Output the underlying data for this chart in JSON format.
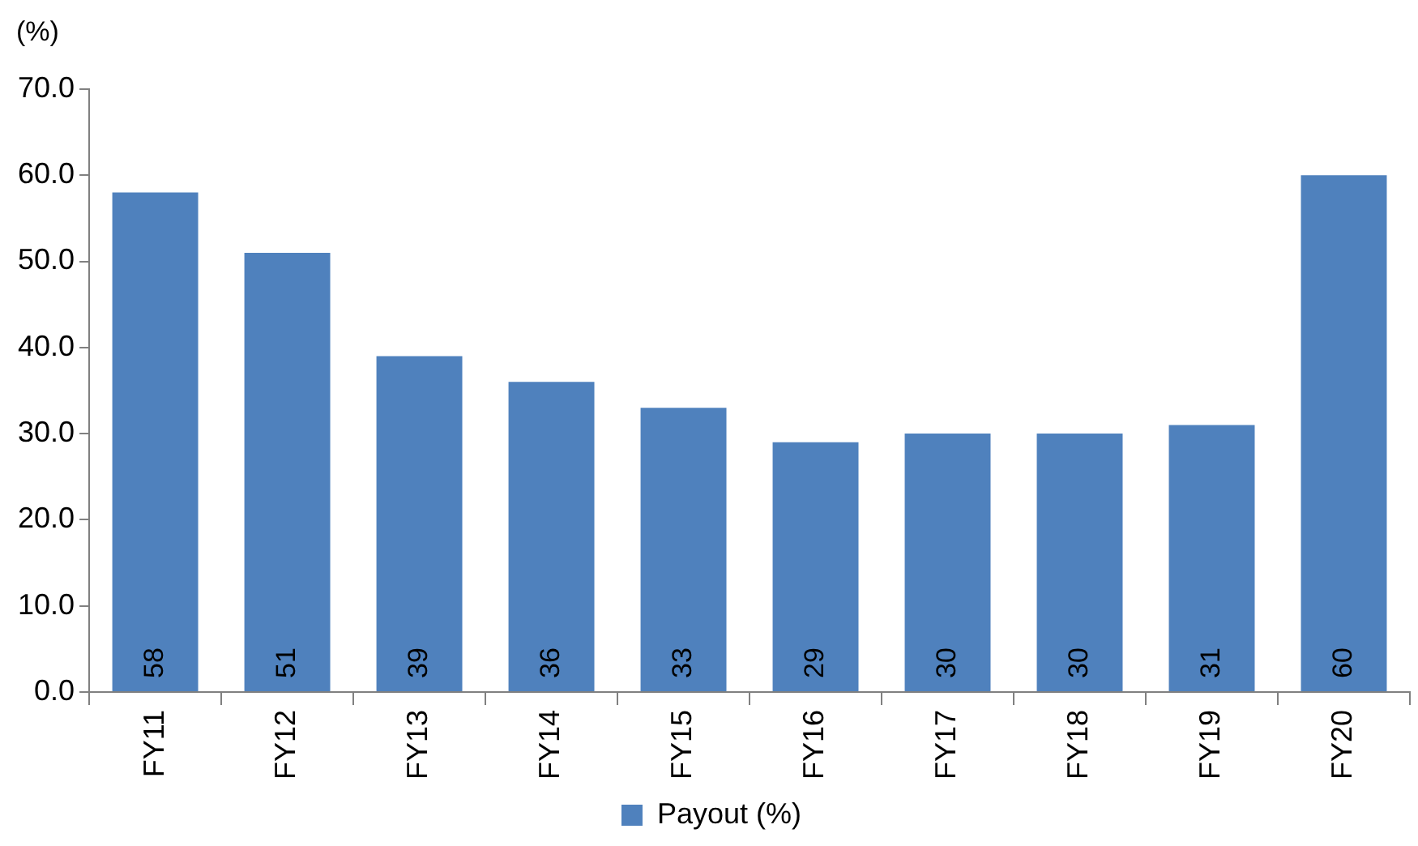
{
  "chart_data": {
    "type": "bar",
    "ylabel": "(%)",
    "categories": [
      "FY11",
      "FY12",
      "FY13",
      "FY14",
      "FY15",
      "FY16",
      "FY17",
      "FY18",
      "FY19",
      "FY20"
    ],
    "series": [
      {
        "name": "Payout (%)",
        "color": "#4f81bd",
        "values": [
          58,
          51,
          39,
          36,
          33,
          29,
          30,
          30,
          31,
          60
        ]
      }
    ],
    "ylim": [
      0,
      70
    ],
    "yticks": [
      {
        "value": 0,
        "label": "0.0"
      },
      {
        "value": 10,
        "label": "10.0"
      },
      {
        "value": 20,
        "label": "20.0"
      },
      {
        "value": 30,
        "label": "30.0"
      },
      {
        "value": 40,
        "label": "40.0"
      },
      {
        "value": 50,
        "label": "50.0"
      },
      {
        "value": 60,
        "label": "60.0"
      },
      {
        "value": 70,
        "label": "70.0"
      }
    ],
    "data_labels": true,
    "legend": "bottom"
  }
}
